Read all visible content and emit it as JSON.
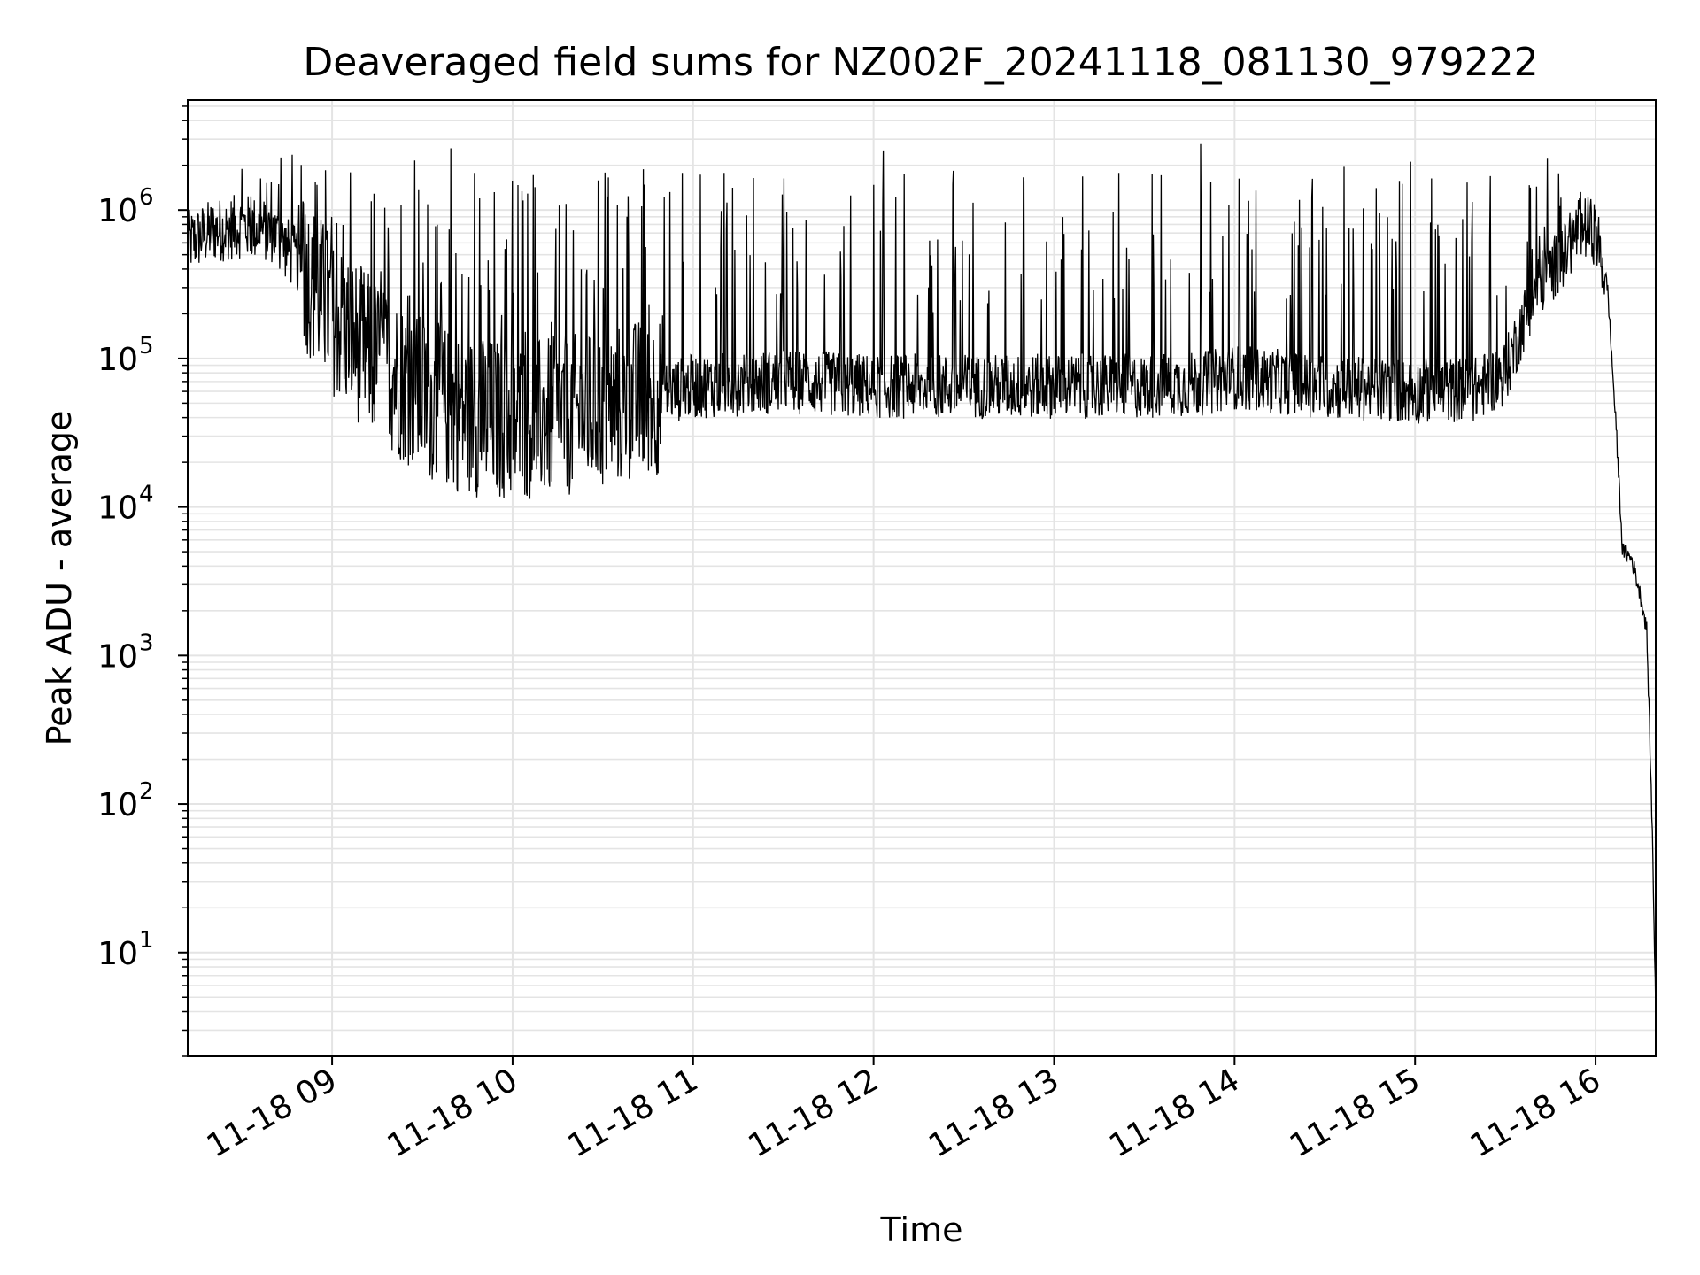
{
  "chart_data": {
    "type": "line",
    "title": "Deaveraged field sums for NZ002F_20241118_081130_979222",
    "xlabel": "Time",
    "ylabel": "Peak ADU - average",
    "yscale": "log",
    "grid": true,
    "line_color": "#000000",
    "grid_color": "#e4e4e4",
    "xlim": [
      "2024-11-18 08:12",
      "2024-11-18 16:20"
    ],
    "ylim": [
      2,
      5500000
    ],
    "xticks": [
      {
        "t": "2024-11-18 09:00",
        "label": "11-18 09"
      },
      {
        "t": "2024-11-18 10:00",
        "label": "11-18 10"
      },
      {
        "t": "2024-11-18 11:00",
        "label": "11-18 11"
      },
      {
        "t": "2024-11-18 12:00",
        "label": "11-18 12"
      },
      {
        "t": "2024-11-18 13:00",
        "label": "11-18 13"
      },
      {
        "t": "2024-11-18 14:00",
        "label": "11-18 14"
      },
      {
        "t": "2024-11-18 15:00",
        "label": "11-18 15"
      },
      {
        "t": "2024-11-18 16:00",
        "label": "11-18 16"
      }
    ],
    "yticks": [
      {
        "v": 10,
        "base": "10",
        "exp": "1"
      },
      {
        "v": 100,
        "base": "10",
        "exp": "2"
      },
      {
        "v": 1000,
        "base": "10",
        "exp": "3"
      },
      {
        "v": 10000,
        "base": "10",
        "exp": "4"
      },
      {
        "v": 100000,
        "base": "10",
        "exp": "5"
      },
      {
        "v": 1000000,
        "base": "10",
        "exp": "6"
      }
    ],
    "baseline": {
      "x": [
        "2024-11-18 08:12",
        "2024-11-18 08:20",
        "2024-11-18 08:30",
        "2024-11-18 08:40",
        "2024-11-18 08:50",
        "2024-11-18 09:00",
        "2024-11-18 09:10",
        "2024-11-18 09:20",
        "2024-11-18 09:30",
        "2024-11-18 09:40",
        "2024-11-18 09:50",
        "2024-11-18 10:00",
        "2024-11-18 10:15",
        "2024-11-18 10:30",
        "2024-11-18 10:45",
        "2024-11-18 11:00",
        "2024-11-18 11:30",
        "2024-11-18 12:00",
        "2024-11-18 12:30",
        "2024-11-18 13:00",
        "2024-11-18 13:30",
        "2024-11-18 13:50",
        "2024-11-18 14:00",
        "2024-11-18 14:30",
        "2024-11-18 15:00",
        "2024-11-18 15:20",
        "2024-11-18 15:30",
        "2024-11-18 15:40",
        "2024-11-18 15:50",
        "2024-11-18 15:55",
        "2024-11-18 16:00",
        "2024-11-18 16:04",
        "2024-11-18 16:07",
        "2024-11-18 16:09",
        "2024-11-18 16:12",
        "2024-11-18 16:15",
        "2024-11-18 16:17",
        "2024-11-18 16:18",
        "2024-11-18 16:19",
        "2024-11-18 16:20"
      ],
      "y": [
        600000,
        720000,
        780000,
        720000,
        420000,
        200000,
        120000,
        80000,
        55000,
        45000,
        40000,
        38000,
        40000,
        45000,
        55000,
        65000,
        70000,
        65000,
        65000,
        65000,
        65000,
        68000,
        75000,
        65000,
        60000,
        62000,
        80000,
        300000,
        500000,
        800000,
        700000,
        300000,
        30000,
        5000,
        4500,
        2500,
        1500,
        300,
        50,
        4
      ]
    },
    "spikes": {
      "count": 260,
      "x_range": [
        "2024-11-18 08:25",
        "2024-11-18 15:55"
      ],
      "max_values": [
        2400000,
        2800000,
        2500000,
        1700000,
        1700000,
        1800000
      ]
    }
  }
}
